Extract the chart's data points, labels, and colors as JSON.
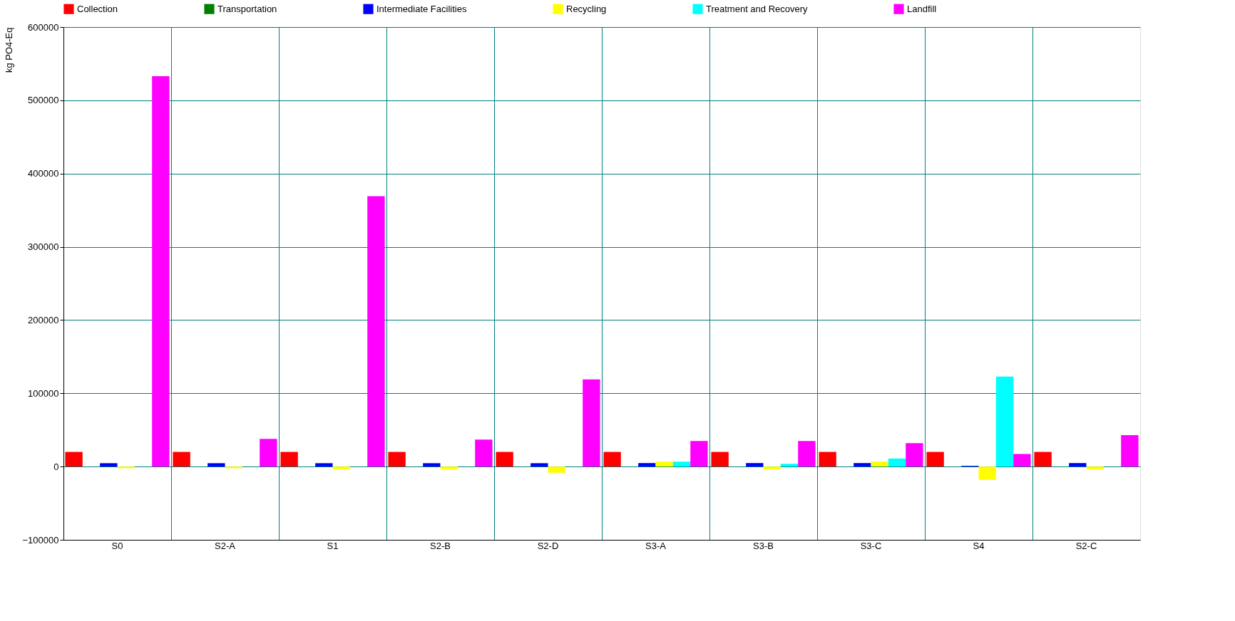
{
  "chart_data": {
    "type": "bar",
    "ylabel": "kg PO4-Eq",
    "categories": [
      "S0",
      "S2-A",
      "S1",
      "S2-B",
      "S2-D",
      "S3-A",
      "S3-B",
      "S3-C",
      "S4",
      "S2-C"
    ],
    "series": [
      {
        "name": "Collection",
        "color": "#ff0000",
        "values": [
          20000,
          20000,
          20000,
          20000,
          20000,
          20000,
          20000,
          20000,
          20000,
          20000
        ]
      },
      {
        "name": "Transportation",
        "color": "#008000",
        "values": [
          0,
          0,
          0,
          0,
          0,
          0,
          0,
          0,
          0,
          0
        ]
      },
      {
        "name": "Intermediate Facilities",
        "color": "#0000ff",
        "values": [
          4600,
          4600,
          4600,
          4600,
          4600,
          4800,
          4800,
          4800,
          1000,
          4800
        ]
      },
      {
        "name": "Recycling",
        "color": "#ffff00",
        "values": [
          -2300,
          -2300,
          -4000,
          -4000,
          -8500,
          6700,
          -3800,
          6700,
          -18200,
          -3800
        ]
      },
      {
        "name": "Treatment and Recovery",
        "color": "#00ffff",
        "values": [
          0,
          0,
          0,
          0,
          0,
          6700,
          3800,
          11000,
          123000,
          0
        ]
      },
      {
        "name": "Landfill",
        "color": "#ff00ff",
        "values": [
          533000,
          37800,
          369000,
          36900,
          119000,
          35000,
          35000,
          32000,
          17200,
          43000
        ]
      }
    ],
    "ylim": [
      -100000,
      600000
    ],
    "yticks": [
      -100000,
      0,
      100000,
      200000,
      300000,
      400000,
      500000,
      600000
    ],
    "grid": true,
    "legend": "top"
  }
}
